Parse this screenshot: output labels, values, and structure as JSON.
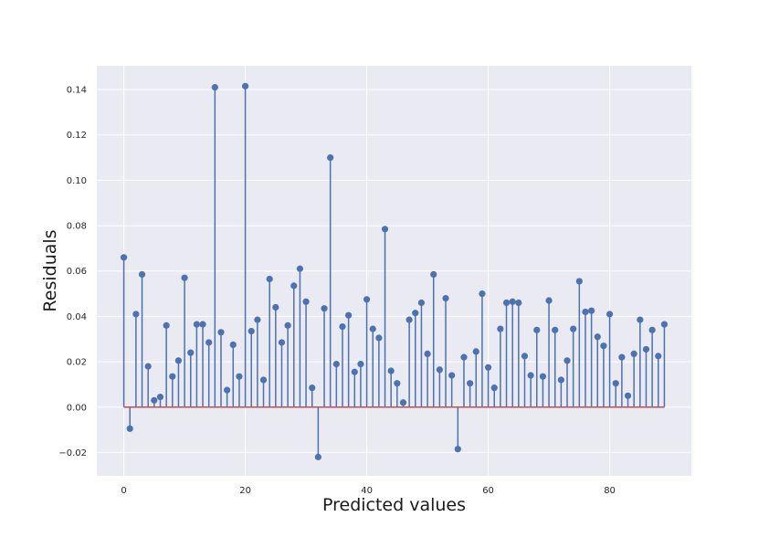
{
  "chart_data": {
    "type": "stem",
    "title": "",
    "xlabel": "Predicted values",
    "ylabel": "Residuals",
    "xlim": [
      -4.45,
      93.45
    ],
    "ylim": [
      -0.0303,
      0.1505
    ],
    "xticks": [
      0,
      20,
      40,
      60,
      80
    ],
    "xtick_labels": [
      "0",
      "20",
      "40",
      "60",
      "80"
    ],
    "yticks": [
      -0.02,
      0.0,
      0.02,
      0.04,
      0.06,
      0.08,
      0.1,
      0.12,
      0.14
    ],
    "ytick_labels": [
      "−0.02",
      "0.00",
      "0.02",
      "0.04",
      "0.06",
      "0.08",
      "0.10",
      "0.12",
      "0.14"
    ],
    "grid": true,
    "baseline": 0,
    "colors": {
      "background": "#EAEAF2",
      "grid": "#FFFFFF",
      "stem": "#4C72B0",
      "baseline": "#C44E52"
    },
    "x": [
      0,
      1,
      2,
      3,
      4,
      5,
      6,
      7,
      8,
      9,
      10,
      11,
      12,
      13,
      14,
      15,
      16,
      17,
      18,
      19,
      20,
      21,
      22,
      23,
      24,
      25,
      26,
      27,
      28,
      29,
      30,
      31,
      32,
      33,
      34,
      35,
      36,
      37,
      38,
      39,
      40,
      41,
      42,
      43,
      44,
      45,
      46,
      47,
      48,
      49,
      50,
      51,
      52,
      53,
      54,
      55,
      56,
      57,
      58,
      59,
      60,
      61,
      62,
      63,
      64,
      65,
      66,
      67,
      68,
      69,
      70,
      71,
      72,
      73,
      74,
      75,
      76,
      77,
      78,
      79,
      80,
      81,
      82,
      83,
      84,
      85,
      86,
      87,
      88,
      89
    ],
    "values": [
      0.066,
      -0.0095,
      0.041,
      0.0585,
      0.018,
      0.003,
      0.0045,
      0.036,
      0.0135,
      0.0205,
      0.057,
      0.024,
      0.0365,
      0.0365,
      0.0285,
      0.141,
      0.033,
      0.0075,
      0.0275,
      0.0135,
      0.1415,
      0.0335,
      0.0385,
      0.012,
      0.0565,
      0.044,
      0.0285,
      0.036,
      0.0535,
      0.061,
      0.0465,
      0.0085,
      -0.022,
      0.0435,
      0.11,
      0.019,
      0.0355,
      0.0405,
      0.0155,
      0.019,
      0.0475,
      0.0345,
      0.0305,
      0.0785,
      0.016,
      0.0105,
      0.002,
      0.0385,
      0.0415,
      0.046,
      0.0235,
      0.0585,
      0.0165,
      0.048,
      0.014,
      -0.0185,
      0.022,
      0.0105,
      0.0245,
      0.05,
      0.0175,
      0.0085,
      0.0345,
      0.046,
      0.0465,
      0.046,
      0.0225,
      0.014,
      0.034,
      0.0135,
      0.047,
      0.034,
      0.012,
      0.0205,
      0.0345,
      0.0555,
      0.042,
      0.0425,
      0.031,
      0.027,
      0.041,
      0.0105,
      0.022,
      0.005,
      0.0235,
      0.0385,
      0.0255,
      0.034,
      0.0225,
      0.0365
    ]
  }
}
